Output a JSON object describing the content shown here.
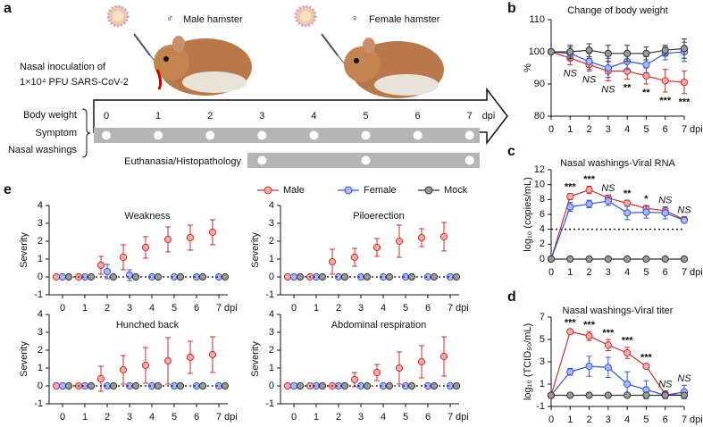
{
  "panel_a": {
    "label": "a",
    "inoculation": [
      "Nasal inoculation of",
      "1×10⁴ PFU SARS-CoV-2"
    ],
    "male": {
      "symbol": "♂",
      "label": "Male hamster"
    },
    "female": {
      "symbol": "♀",
      "label": "Female hamster"
    },
    "timeline": {
      "days": [
        0,
        1,
        2,
        3,
        4,
        5,
        6,
        7
      ],
      "unit": "dpi"
    },
    "rows": [
      "Body weight",
      "Symptom",
      "Nasal washings"
    ],
    "sampling_days": [
      0,
      1,
      2,
      3,
      4,
      5,
      6,
      7
    ],
    "euthanasia": {
      "label": "Euthanasia/Histopathology",
      "days": [
        3,
        5,
        7
      ]
    }
  },
  "chart_data": [
    {
      "panel": "b",
      "type": "line",
      "title": "Change of body weight",
      "ylabel": "%",
      "xlabel": "dpi",
      "x": [
        0,
        1,
        2,
        3,
        4,
        5,
        6,
        7
      ],
      "xlim": [
        0,
        7
      ],
      "ylim": [
        80,
        110
      ],
      "yticks": [
        80,
        90,
        100,
        110
      ],
      "significance_position": "below",
      "significance": [
        null,
        "NS",
        "NS",
        "NS",
        "**",
        "**",
        "***",
        "***"
      ],
      "series": [
        {
          "color": "#c8322c",
          "fill": "#f4aaa6",
          "values": [
            100,
            98,
            96,
            94,
            94,
            92.5,
            91,
            90.5
          ],
          "errors": [
            0,
            2,
            2,
            3,
            2.5,
            2.5,
            3.5,
            3.5
          ]
        },
        {
          "color": "#3553d6",
          "fill": "#aab8f3",
          "values": [
            100,
            99.5,
            97,
            95,
            97,
            96,
            99.5,
            100
          ],
          "errors": [
            0,
            2,
            2.5,
            3,
            2.5,
            2.5,
            2,
            3
          ]
        },
        {
          "color": "#333333",
          "fill": "#9a9a9a",
          "values": [
            100,
            100,
            100.5,
            99.5,
            99.5,
            99.5,
            100.5,
            101
          ],
          "errors": [
            0,
            2,
            2,
            2.5,
            2.5,
            2,
            1.5,
            3
          ]
        }
      ]
    },
    {
      "panel": "c",
      "type": "line",
      "title": "Nasal washings-Viral RNA",
      "ylabel": "log₁₀ (copies/mL)",
      "xlabel": "dpi",
      "x": [
        0,
        1,
        2,
        3,
        4,
        5,
        6,
        7
      ],
      "xlim": [
        0,
        7
      ],
      "ylim": [
        0,
        12
      ],
      "yticks": [
        0,
        2,
        4,
        6,
        8,
        10,
        12
      ],
      "threshold": 4,
      "significance_position": "above",
      "significance": [
        null,
        "***",
        "***",
        "NS",
        "**",
        "*",
        "NS",
        "NS"
      ],
      "series": [
        {
          "color": "#c8322c",
          "fill": "#f4aaa6",
          "values": [
            0,
            8.4,
            9.3,
            8.2,
            7.5,
            6.8,
            6.5,
            5.3
          ],
          "errors": [
            0,
            0.4,
            0.5,
            0.4,
            0.4,
            0.4,
            0.5,
            0.4
          ]
        },
        {
          "color": "#3553d6",
          "fill": "#aab8f3",
          "values": [
            0,
            7.0,
            7.4,
            7.8,
            6.2,
            6.3,
            6.2,
            5.2
          ],
          "errors": [
            0,
            0.6,
            0.5,
            0.6,
            0.9,
            0.8,
            0.8,
            0.3
          ]
        },
        {
          "color": "#333333",
          "fill": "#9a9a9a",
          "values": [
            0,
            0,
            0,
            0,
            0,
            0,
            0,
            0
          ],
          "errors": [
            0,
            0,
            0,
            0,
            0,
            0,
            0,
            0
          ]
        }
      ]
    },
    {
      "panel": "d",
      "type": "line",
      "title": "Nasal washings-Viral titer",
      "ylabel": "log₁₀ (TCID₅₀/mL)",
      "xlabel": "dpi",
      "x": [
        0,
        1,
        2,
        3,
        4,
        5,
        6,
        7
      ],
      "xlim": [
        0,
        7
      ],
      "ylim": [
        -1,
        7
      ],
      "yticks": [
        -1,
        1,
        3,
        5,
        7
      ],
      "significance_position": "above",
      "significance": [
        null,
        "***",
        "***",
        "***",
        "***",
        "***",
        "NS",
        "NS"
      ],
      "series": [
        {
          "color": "#c8322c",
          "fill": "#f4aaa6",
          "values": [
            0,
            5.7,
            5.3,
            4.5,
            3.8,
            2.6,
            0.1,
            0
          ],
          "errors": [
            0,
            0.2,
            0.4,
            0.5,
            0.5,
            0.2,
            0.3,
            0.2
          ]
        },
        {
          "color": "#3553d6",
          "fill": "#aab8f3",
          "values": [
            0,
            2.1,
            2.6,
            2.5,
            1.0,
            0.5,
            0,
            0.3
          ],
          "errors": [
            0,
            0.3,
            0.9,
            0.9,
            1.1,
            0.8,
            0.3,
            0.6
          ]
        },
        {
          "color": "#333333",
          "fill": "#9a9a9a",
          "values": [
            0,
            0,
            0,
            0,
            0,
            0,
            0,
            0
          ],
          "errors": [
            0,
            0,
            0,
            0,
            0,
            0,
            0,
            0
          ]
        }
      ]
    },
    {
      "panel": "e",
      "type": "dot",
      "ylabel": "Severity",
      "xlabel": "dpi",
      "legend": "top",
      "x": [
        0,
        1,
        2,
        3,
        4,
        5,
        6,
        7
      ],
      "xlim": [
        -0.6,
        7.4
      ],
      "ylim": [
        -1,
        4
      ],
      "yticks": [
        -1,
        0,
        1,
        2,
        3,
        4
      ],
      "series": [
        {
          "name": "Male",
          "color": "#c8322c",
          "fill": "#f4aaa6",
          "line": "none"
        },
        {
          "name": "Female",
          "color": "#3553d6",
          "fill": "#aab8f3",
          "line": "none"
        },
        {
          "name": "Mock",
          "color": "#333333",
          "fill": "#9a9a9a",
          "line": "dotted"
        }
      ],
      "panels": [
        {
          "title": "Weakness",
          "values": [
            [
              0,
              0,
              0.65,
              1.1,
              1.65,
              2.1,
              2.2,
              2.5
            ],
            [
              0,
              0,
              0.3,
              0.1,
              0,
              0,
              0,
              0
            ],
            [
              0,
              0,
              0,
              0,
              0,
              0,
              0,
              0
            ]
          ],
          "errors": [
            [
              0,
              0,
              0.5,
              0.7,
              0.6,
              0.7,
              0.7,
              0.7
            ],
            [
              0,
              0,
              0.4,
              0.3,
              0,
              0,
              0,
              0
            ],
            [
              0,
              0,
              0,
              0,
              0,
              0,
              0,
              0
            ]
          ]
        },
        {
          "title": "Piloerection",
          "values": [
            [
              0,
              0,
              0.85,
              1.1,
              1.65,
              2.0,
              2.2,
              2.25
            ],
            [
              0,
              0,
              0,
              0,
              0,
              0,
              0,
              0
            ],
            [
              0,
              0,
              0,
              0,
              0,
              0,
              0,
              0
            ]
          ],
          "errors": [
            [
              0,
              0,
              0.7,
              0.5,
              0.5,
              0.9,
              0.5,
              0.8
            ],
            [
              0,
              0,
              0,
              0,
              0,
              0,
              0,
              0
            ],
            [
              0,
              0,
              0,
              0,
              0,
              0,
              0,
              0
            ]
          ]
        },
        {
          "title": "Hunched back",
          "values": [
            [
              0,
              0,
              0.4,
              0.9,
              1.15,
              1.4,
              1.6,
              1.75
            ],
            [
              0,
              0,
              0,
              0,
              0,
              0,
              0,
              0
            ],
            [
              0,
              0,
              0,
              0,
              0,
              0,
              0,
              0
            ]
          ],
          "errors": [
            [
              0,
              0,
              0.7,
              0.8,
              1.0,
              1.3,
              0.9,
              1.0
            ],
            [
              0,
              0,
              0,
              0,
              0,
              0,
              0,
              0
            ],
            [
              0,
              0,
              0,
              0,
              0,
              0,
              0,
              0
            ]
          ]
        },
        {
          "title": "Abdominal respiration",
          "values": [
            [
              0,
              0,
              0,
              0.35,
              0.75,
              1.0,
              1.35,
              1.65
            ],
            [
              0,
              0,
              0,
              0,
              0,
              0,
              0,
              0
            ],
            [
              0,
              0,
              0,
              0,
              0,
              0,
              0,
              0
            ]
          ],
          "errors": [
            [
              0,
              0,
              0,
              0.4,
              0.45,
              0.9,
              0.9,
              1.1
            ],
            [
              0,
              0,
              0,
              0,
              0,
              0,
              0,
              0
            ],
            [
              0,
              0,
              0,
              0,
              0,
              0,
              0,
              0
            ]
          ]
        }
      ]
    }
  ]
}
